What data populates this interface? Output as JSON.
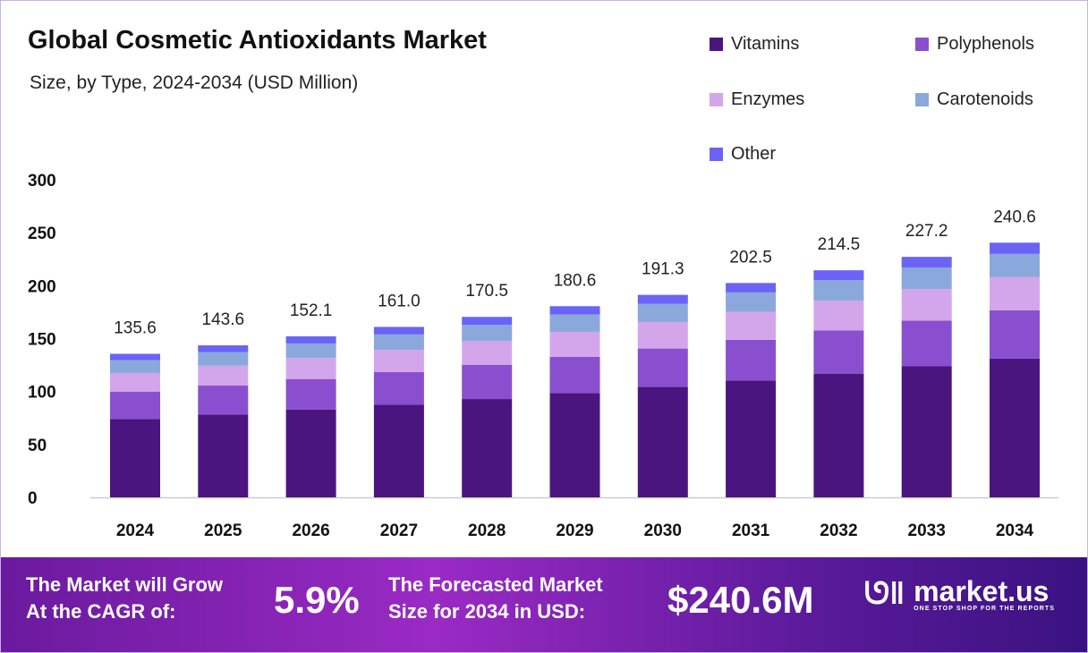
{
  "title": "Global Cosmetic Antioxidants Market",
  "subtitle": "Size, by Type, 2024-2034 (USD Million)",
  "chart_data": {
    "type": "bar",
    "stacked": true,
    "title": "Global Cosmetic Antioxidants Market",
    "subtitle": "Size, by Type, 2024-2034 (USD Million)",
    "categories": [
      "2024",
      "2025",
      "2026",
      "2027",
      "2028",
      "2029",
      "2030",
      "2031",
      "2032",
      "2033",
      "2034"
    ],
    "ylim": [
      0,
      300
    ],
    "yticks": [
      "0",
      "50",
      "100",
      "150",
      "200",
      "250",
      "300"
    ],
    "grid": false,
    "legend_position": "top-right",
    "totals": [
      "135.6",
      "143.6",
      "152.1",
      "161.0",
      "170.5",
      "180.6",
      "191.3",
      "202.5",
      "214.5",
      "227.2",
      "240.6"
    ],
    "series": [
      {
        "name": "Vitamins",
        "color": "#4b1580",
        "values": [
          73.9,
          78.3,
          82.9,
          87.7,
          92.9,
          98.4,
          104.3,
          110.4,
          116.9,
          123.8,
          131.1
        ]
      },
      {
        "name": "Polyphenols",
        "color": "#8a4fcf",
        "values": [
          25.8,
          27.3,
          28.9,
          30.6,
          32.4,
          34.3,
          36.3,
          38.5,
          40.8,
          43.2,
          45.7
        ]
      },
      {
        "name": "Enzymes",
        "color": "#d3a6ec",
        "values": [
          17.8,
          18.8,
          19.9,
          21.1,
          22.3,
          23.7,
          25.1,
          26.5,
          28.1,
          29.8,
          31.5
        ]
      },
      {
        "name": "Carotenoids",
        "color": "#8aa8dc",
        "values": [
          12.2,
          12.9,
          13.7,
          14.5,
          15.3,
          16.3,
          17.2,
          18.2,
          19.3,
          20.4,
          21.7
        ]
      },
      {
        "name": "Other",
        "color": "#6a63f5",
        "values": [
          5.9,
          6.3,
          6.7,
          7.1,
          7.6,
          7.9,
          8.4,
          8.9,
          9.4,
          10.0,
          10.6
        ]
      }
    ]
  },
  "banner": {
    "cagr_label_1": "The Market will Grow",
    "cagr_label_2": "At the CAGR of:",
    "cagr_value": "5.9%",
    "forecast_label_1": "The Forecasted Market",
    "forecast_label_2": "Size for 2034 in USD:",
    "forecast_value": "$240.6M",
    "logo_name": "market.us",
    "logo_tagline": "ONE STOP SHOP FOR THE REPORTS"
  }
}
